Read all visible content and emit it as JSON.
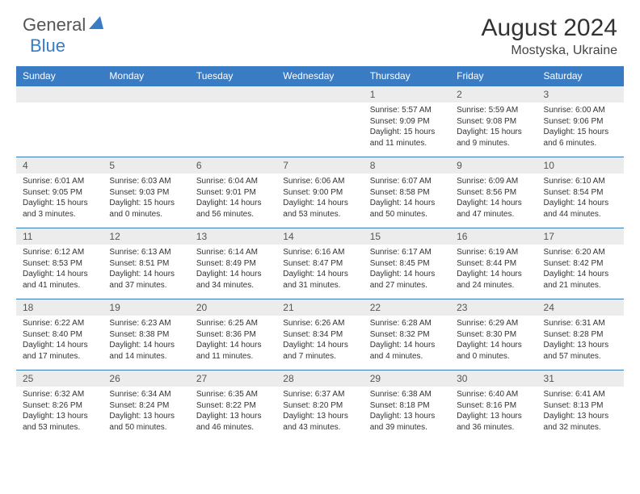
{
  "logo": {
    "text1": "General",
    "text2": "Blue"
  },
  "title": "August 2024",
  "location": "Mostyska, Ukraine",
  "colors": {
    "header_bg": "#3a7cc4",
    "header_text": "#ffffff",
    "daynum_bg": "#ececec",
    "border": "#3a7cc4",
    "body_text": "#333333",
    "logo_gray": "#555555",
    "logo_blue": "#3a7cc4"
  },
  "daysOfWeek": [
    "Sunday",
    "Monday",
    "Tuesday",
    "Wednesday",
    "Thursday",
    "Friday",
    "Saturday"
  ],
  "weeks": [
    [
      {
        "n": "",
        "sr": "",
        "ss": "",
        "dl": ""
      },
      {
        "n": "",
        "sr": "",
        "ss": "",
        "dl": ""
      },
      {
        "n": "",
        "sr": "",
        "ss": "",
        "dl": ""
      },
      {
        "n": "",
        "sr": "",
        "ss": "",
        "dl": ""
      },
      {
        "n": "1",
        "sr": "Sunrise: 5:57 AM",
        "ss": "Sunset: 9:09 PM",
        "dl": "Daylight: 15 hours and 11 minutes."
      },
      {
        "n": "2",
        "sr": "Sunrise: 5:59 AM",
        "ss": "Sunset: 9:08 PM",
        "dl": "Daylight: 15 hours and 9 minutes."
      },
      {
        "n": "3",
        "sr": "Sunrise: 6:00 AM",
        "ss": "Sunset: 9:06 PM",
        "dl": "Daylight: 15 hours and 6 minutes."
      }
    ],
    [
      {
        "n": "4",
        "sr": "Sunrise: 6:01 AM",
        "ss": "Sunset: 9:05 PM",
        "dl": "Daylight: 15 hours and 3 minutes."
      },
      {
        "n": "5",
        "sr": "Sunrise: 6:03 AM",
        "ss": "Sunset: 9:03 PM",
        "dl": "Daylight: 15 hours and 0 minutes."
      },
      {
        "n": "6",
        "sr": "Sunrise: 6:04 AM",
        "ss": "Sunset: 9:01 PM",
        "dl": "Daylight: 14 hours and 56 minutes."
      },
      {
        "n": "7",
        "sr": "Sunrise: 6:06 AM",
        "ss": "Sunset: 9:00 PM",
        "dl": "Daylight: 14 hours and 53 minutes."
      },
      {
        "n": "8",
        "sr": "Sunrise: 6:07 AM",
        "ss": "Sunset: 8:58 PM",
        "dl": "Daylight: 14 hours and 50 minutes."
      },
      {
        "n": "9",
        "sr": "Sunrise: 6:09 AM",
        "ss": "Sunset: 8:56 PM",
        "dl": "Daylight: 14 hours and 47 minutes."
      },
      {
        "n": "10",
        "sr": "Sunrise: 6:10 AM",
        "ss": "Sunset: 8:54 PM",
        "dl": "Daylight: 14 hours and 44 minutes."
      }
    ],
    [
      {
        "n": "11",
        "sr": "Sunrise: 6:12 AM",
        "ss": "Sunset: 8:53 PM",
        "dl": "Daylight: 14 hours and 41 minutes."
      },
      {
        "n": "12",
        "sr": "Sunrise: 6:13 AM",
        "ss": "Sunset: 8:51 PM",
        "dl": "Daylight: 14 hours and 37 minutes."
      },
      {
        "n": "13",
        "sr": "Sunrise: 6:14 AM",
        "ss": "Sunset: 8:49 PM",
        "dl": "Daylight: 14 hours and 34 minutes."
      },
      {
        "n": "14",
        "sr": "Sunrise: 6:16 AM",
        "ss": "Sunset: 8:47 PM",
        "dl": "Daylight: 14 hours and 31 minutes."
      },
      {
        "n": "15",
        "sr": "Sunrise: 6:17 AM",
        "ss": "Sunset: 8:45 PM",
        "dl": "Daylight: 14 hours and 27 minutes."
      },
      {
        "n": "16",
        "sr": "Sunrise: 6:19 AM",
        "ss": "Sunset: 8:44 PM",
        "dl": "Daylight: 14 hours and 24 minutes."
      },
      {
        "n": "17",
        "sr": "Sunrise: 6:20 AM",
        "ss": "Sunset: 8:42 PM",
        "dl": "Daylight: 14 hours and 21 minutes."
      }
    ],
    [
      {
        "n": "18",
        "sr": "Sunrise: 6:22 AM",
        "ss": "Sunset: 8:40 PM",
        "dl": "Daylight: 14 hours and 17 minutes."
      },
      {
        "n": "19",
        "sr": "Sunrise: 6:23 AM",
        "ss": "Sunset: 8:38 PM",
        "dl": "Daylight: 14 hours and 14 minutes."
      },
      {
        "n": "20",
        "sr": "Sunrise: 6:25 AM",
        "ss": "Sunset: 8:36 PM",
        "dl": "Daylight: 14 hours and 11 minutes."
      },
      {
        "n": "21",
        "sr": "Sunrise: 6:26 AM",
        "ss": "Sunset: 8:34 PM",
        "dl": "Daylight: 14 hours and 7 minutes."
      },
      {
        "n": "22",
        "sr": "Sunrise: 6:28 AM",
        "ss": "Sunset: 8:32 PM",
        "dl": "Daylight: 14 hours and 4 minutes."
      },
      {
        "n": "23",
        "sr": "Sunrise: 6:29 AM",
        "ss": "Sunset: 8:30 PM",
        "dl": "Daylight: 14 hours and 0 minutes."
      },
      {
        "n": "24",
        "sr": "Sunrise: 6:31 AM",
        "ss": "Sunset: 8:28 PM",
        "dl": "Daylight: 13 hours and 57 minutes."
      }
    ],
    [
      {
        "n": "25",
        "sr": "Sunrise: 6:32 AM",
        "ss": "Sunset: 8:26 PM",
        "dl": "Daylight: 13 hours and 53 minutes."
      },
      {
        "n": "26",
        "sr": "Sunrise: 6:34 AM",
        "ss": "Sunset: 8:24 PM",
        "dl": "Daylight: 13 hours and 50 minutes."
      },
      {
        "n": "27",
        "sr": "Sunrise: 6:35 AM",
        "ss": "Sunset: 8:22 PM",
        "dl": "Daylight: 13 hours and 46 minutes."
      },
      {
        "n": "28",
        "sr": "Sunrise: 6:37 AM",
        "ss": "Sunset: 8:20 PM",
        "dl": "Daylight: 13 hours and 43 minutes."
      },
      {
        "n": "29",
        "sr": "Sunrise: 6:38 AM",
        "ss": "Sunset: 8:18 PM",
        "dl": "Daylight: 13 hours and 39 minutes."
      },
      {
        "n": "30",
        "sr": "Sunrise: 6:40 AM",
        "ss": "Sunset: 8:16 PM",
        "dl": "Daylight: 13 hours and 36 minutes."
      },
      {
        "n": "31",
        "sr": "Sunrise: 6:41 AM",
        "ss": "Sunset: 8:13 PM",
        "dl": "Daylight: 13 hours and 32 minutes."
      }
    ]
  ]
}
